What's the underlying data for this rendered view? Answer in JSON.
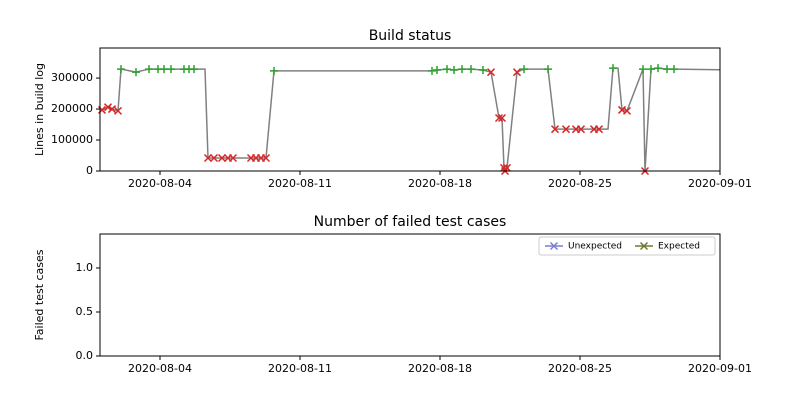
{
  "chart_data": [
    {
      "type": "line",
      "title": "Build status",
      "ylabel": "Lines in build log",
      "xlim": [
        "2020-08-01T00:00",
        "2020-09-01T00:00"
      ],
      "xticks": [
        "2020-08-04",
        "2020-08-11",
        "2020-08-18",
        "2020-08-25",
        "2020-09-01"
      ],
      "ylim": [
        0,
        397000
      ],
      "yticks": [
        0,
        100000,
        200000,
        300000
      ],
      "marker_colors": {
        "x": "#d62728",
        "+": "#2ca02c"
      },
      "x": [
        "2020-08-01T02:24",
        "2020-08-01T09:36",
        "2020-08-01T14:24",
        "2020-08-01T21:36",
        "2020-08-02T01:12",
        "2020-08-02T19:12",
        "2020-08-03T10:48",
        "2020-08-03T21:36",
        "2020-08-04T04:48",
        "2020-08-04T13:12",
        "2020-08-05T04:48",
        "2020-08-05T10:48",
        "2020-08-05T16:48",
        "2020-08-06T06:00",
        "2020-08-06T09:36",
        "2020-08-06T16:48",
        "2020-08-07T02:24",
        "2020-08-07T09:36",
        "2020-08-07T15:36",
        "2020-08-08T13:12",
        "2020-08-08T19:12",
        "2020-08-09T01:12",
        "2020-08-09T07:12",
        "2020-08-09T16:48",
        "2020-08-17T14:24",
        "2020-08-17T20:24",
        "2020-08-18T08:24",
        "2020-08-18T16:48",
        "2020-08-19T02:24",
        "2020-08-19T13:12",
        "2020-08-20T03:36",
        "2020-08-20T13:12",
        "2020-08-20T22:48",
        "2020-08-21T02:24",
        "2020-08-21T04:48",
        "2020-08-21T06:00",
        "2020-08-21T08:24",
        "2020-08-21T20:24",
        "2020-08-22T04:48",
        "2020-08-23T09:36",
        "2020-08-23T18:00",
        "2020-08-24T07:12",
        "2020-08-24T19:12",
        "2020-08-25T01:12",
        "2020-08-25T16:48",
        "2020-08-25T22:48",
        "2020-08-26T09:36",
        "2020-08-26T15:36",
        "2020-08-26T21:36",
        "2020-08-27T02:24",
        "2020-08-27T08:24",
        "2020-08-28T03:36",
        "2020-08-28T06:00",
        "2020-08-28T13:12",
        "2020-08-28T21:36",
        "2020-08-29T08:24",
        "2020-08-29T16:48",
        "2020-09-01T00:00"
      ],
      "series": [
        {
          "color": "#808080",
          "values": [
            197000,
            206000,
            200000,
            194000,
            329000,
            319000,
            329000,
            329000,
            329000,
            329000,
            329000,
            329000,
            329000,
            329000,
            42000,
            42000,
            42000,
            42000,
            42000,
            42000,
            42000,
            42000,
            42000,
            323000,
            323000,
            326000,
            329000,
            326000,
            329000,
            329000,
            326000,
            319000,
            171000,
            171000,
            10000,
            0,
            10000,
            319000,
            329000,
            329000,
            135000,
            135000,
            135000,
            135000,
            135000,
            135000,
            135000,
            332000,
            332000,
            197000,
            194000,
            329000,
            0,
            329000,
            332000,
            329000,
            329000,
            327000
          ],
          "markers": [
            "x",
            "x",
            "x",
            "x",
            "+",
            "+",
            "+",
            "+",
            "+",
            "+",
            "+",
            "+",
            "+",
            null,
            "x",
            "x",
            "x",
            "x",
            "x",
            "x",
            "x",
            "x",
            "x",
            "+",
            "+",
            "+",
            "+",
            "+",
            "+",
            "+",
            "+",
            "x",
            "x",
            "x",
            "x",
            "x",
            "x",
            "x",
            "+",
            "+",
            "x",
            "x",
            "x",
            "x",
            "x",
            "x",
            null,
            "+",
            null,
            "x",
            "x",
            "+",
            "x",
            "+",
            "+",
            "+",
            "+",
            null
          ]
        }
      ]
    },
    {
      "type": "line",
      "title": "Number of failed test cases",
      "ylabel": "Failed test cases",
      "xlim": [
        "2020-08-01T00:00",
        "2020-09-01T00:00"
      ],
      "xticks": [
        "2020-08-04",
        "2020-08-11",
        "2020-08-18",
        "2020-08-25",
        "2020-09-01"
      ],
      "ylim": [
        0,
        1.386
      ],
      "yticks": [
        {
          "value": 0,
          "label": "0.0"
        },
        0.5,
        {
          "value": 1,
          "label": "1.0"
        }
      ],
      "legend": "upper right",
      "x": [],
      "series": [
        {
          "name": "Unexpected",
          "color": "#7b7fd0",
          "marker": "x",
          "values": []
        },
        {
          "name": "Expected",
          "color": "#6b7d2a",
          "marker": "x",
          "values": []
        }
      ]
    }
  ]
}
